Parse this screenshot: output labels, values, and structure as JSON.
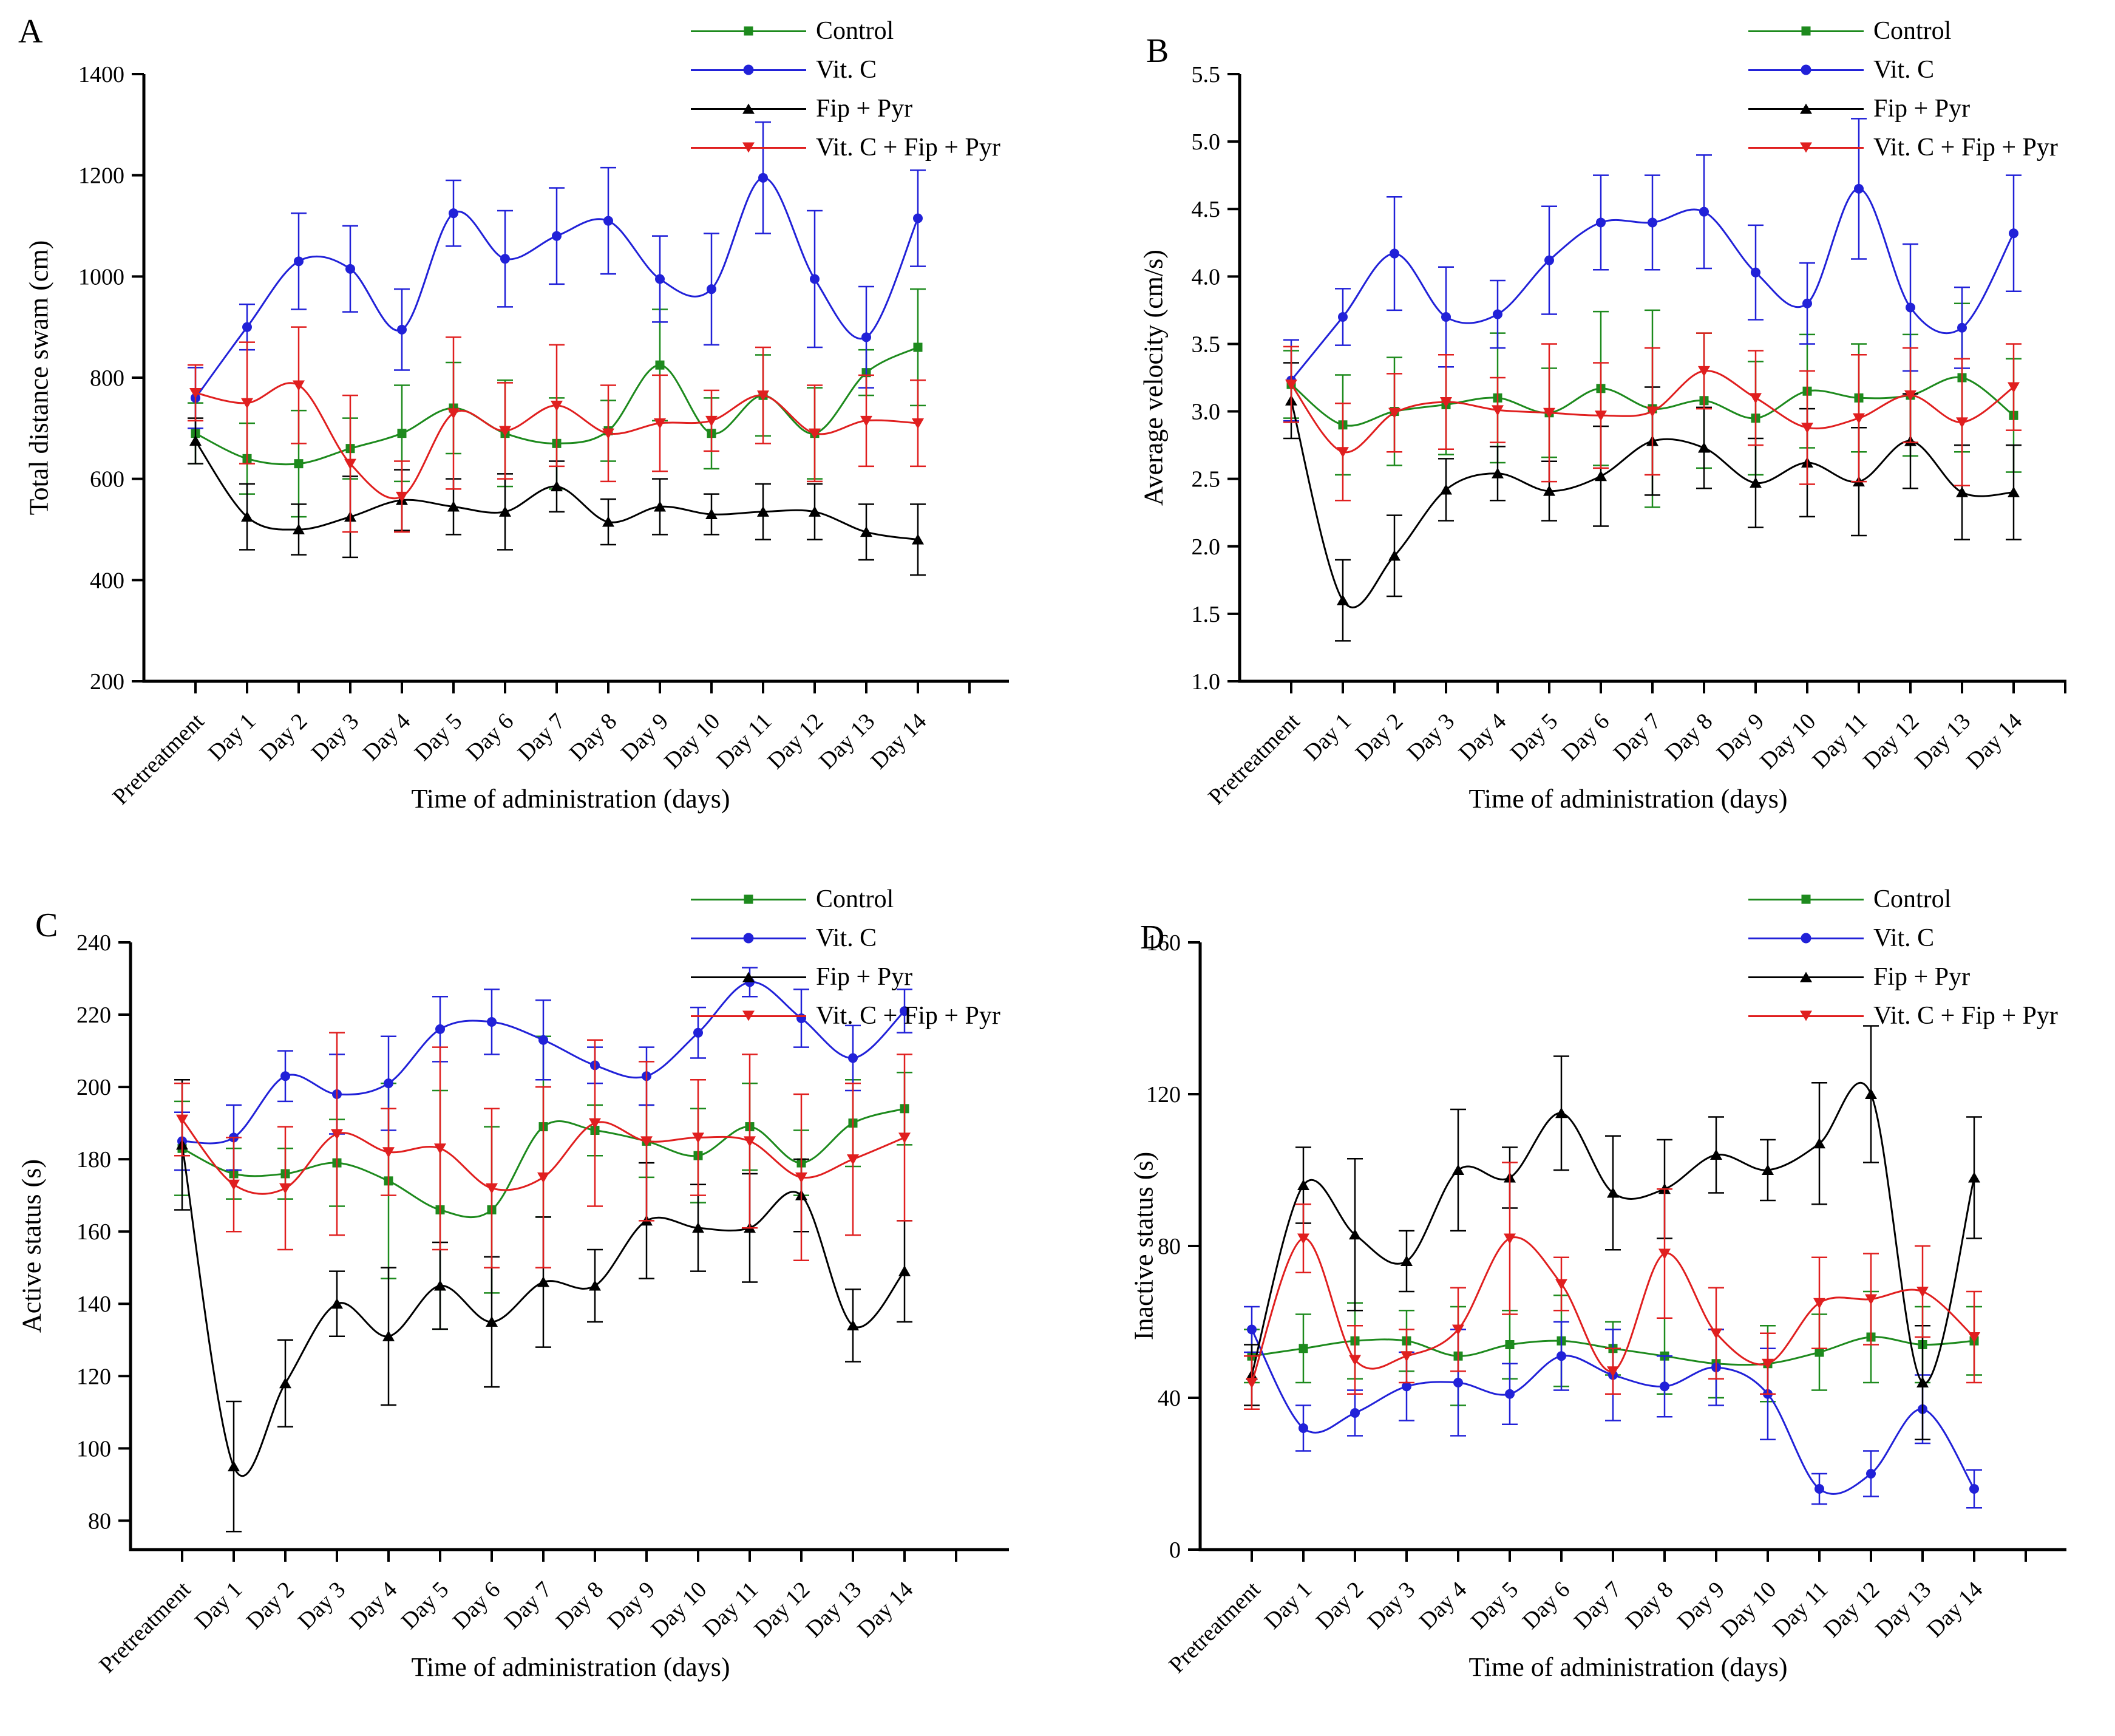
{
  "figure": {
    "xlabel": "Time of administration (days)",
    "background": "#ffffff",
    "categories": [
      "Pretreatment",
      "Day 1",
      "Day 2",
      "Day 3",
      "Day 4",
      "Day 5",
      "Day 6",
      "Day 7",
      "Day 8",
      "Day 9",
      "Day 10",
      "Day 11",
      "Day 12",
      "Day 13",
      "Day 14"
    ],
    "legend": [
      "Control",
      "Vit. C",
      "Fip + Pyr",
      "Vit. C + Fip + Pyr"
    ],
    "colors": [
      "#1d8a1d",
      "#2121d8",
      "#000000",
      "#e01f1f"
    ],
    "markers": [
      "square",
      "circle",
      "triangle-up",
      "triangle-down"
    ]
  },
  "chart_data": [
    {
      "type": "line",
      "panel_label": "A",
      "ylabel": "Total distance swam (cm)",
      "xlabel": "Time of administration (days)",
      "ylim": [
        200,
        1400
      ],
      "yticks": [
        [
          200,
          "200"
        ],
        [
          400,
          "400"
        ],
        [
          600,
          "600"
        ],
        [
          800,
          "800"
        ],
        [
          1000,
          "1000"
        ],
        [
          1200,
          "1200"
        ],
        [
          1400,
          "1400"
        ]
      ],
      "legend_position": "top-right",
      "grid": false,
      "series": [
        {
          "name": "Control",
          "color": "#1d8a1d",
          "marker": "square",
          "values": [
            690,
            640,
            630,
            660,
            690,
            740,
            690,
            670,
            695,
            825,
            690,
            765,
            690,
            810,
            860
          ],
          "errors": [
            60,
            70,
            105,
            60,
            95,
            90,
            105,
            90,
            60,
            110,
            70,
            80,
            90,
            45,
            115
          ]
        },
        {
          "name": "Vit. C",
          "color": "#2121d8",
          "marker": "circle",
          "values": [
            760,
            900,
            1030,
            1015,
            895,
            1125,
            1035,
            1080,
            1110,
            995,
            975,
            1195,
            995,
            880,
            1115
          ],
          "errors": [
            60,
            45,
            95,
            85,
            80,
            65,
            95,
            95,
            105,
            85,
            110,
            110,
            135,
            100,
            95
          ]
        },
        {
          "name": "Fip + Pyr",
          "color": "#000000",
          "marker": "triangle-up",
          "values": [
            675,
            525,
            500,
            525,
            558,
            545,
            535,
            585,
            515,
            545,
            530,
            535,
            535,
            495,
            480
          ],
          "errors": [
            45,
            65,
            50,
            80,
            60,
            55,
            75,
            50,
            45,
            55,
            40,
            55,
            55,
            55,
            70
          ]
        },
        {
          "name": "Vit. C + Fip + Pyr",
          "color": "#e01f1f",
          "marker": "triangle-down",
          "values": [
            770,
            750,
            785,
            630,
            565,
            730,
            695,
            745,
            690,
            710,
            715,
            765,
            690,
            715,
            710
          ],
          "errors": [
            55,
            120,
            115,
            135,
            70,
            150,
            95,
            120,
            95,
            95,
            60,
            95,
            95,
            90,
            85
          ]
        }
      ]
    },
    {
      "type": "line",
      "panel_label": "B",
      "ylabel": "Average velocity (cm/s)",
      "xlabel": "Time of administration (days)",
      "ylim": [
        1.0,
        5.5
      ],
      "yticks": [
        [
          1,
          "1.0"
        ],
        [
          1.5,
          "1.5"
        ],
        [
          2,
          "2.0"
        ],
        [
          2.5,
          "2.5"
        ],
        [
          3,
          "3.0"
        ],
        [
          3.5,
          "3.5"
        ],
        [
          4,
          "4.0"
        ],
        [
          4.5,
          "4.5"
        ],
        [
          5,
          "5.0"
        ],
        [
          5.5,
          "5.5"
        ]
      ],
      "legend_position": "top-right",
      "grid": false,
      "series": [
        {
          "name": "Control",
          "color": "#1d8a1d",
          "marker": "square",
          "values": [
            3.2,
            2.9,
            3.0,
            3.05,
            3.1,
            2.99,
            3.17,
            3.02,
            3.08,
            2.95,
            3.15,
            3.1,
            3.12,
            3.25,
            2.97
          ],
          "errors": [
            0.25,
            0.37,
            0.4,
            0.37,
            0.48,
            0.33,
            0.57,
            0.73,
            0.5,
            0.42,
            0.42,
            0.4,
            0.45,
            0.55,
            0.42
          ]
        },
        {
          "name": "Vit. C",
          "color": "#2121d8",
          "marker": "circle",
          "values": [
            3.23,
            3.7,
            4.17,
            3.7,
            3.72,
            4.12,
            4.4,
            4.4,
            4.48,
            4.03,
            3.8,
            4.65,
            3.77,
            3.62,
            4.32
          ],
          "errors": [
            0.3,
            0.21,
            0.42,
            0.37,
            0.25,
            0.4,
            0.35,
            0.35,
            0.42,
            0.35,
            0.3,
            0.52,
            0.47,
            0.3,
            0.43
          ]
        },
        {
          "name": "Fip + Pyr",
          "color": "#000000",
          "marker": "triangle-up",
          "values": [
            3.08,
            1.6,
            1.93,
            2.42,
            2.54,
            2.41,
            2.52,
            2.78,
            2.73,
            2.47,
            2.62,
            2.48,
            2.78,
            2.4,
            2.4
          ],
          "errors": [
            0.28,
            0.3,
            0.3,
            0.23,
            0.2,
            0.22,
            0.37,
            0.4,
            0.3,
            0.33,
            0.4,
            0.4,
            0.35,
            0.35,
            0.35
          ]
        },
        {
          "name": "Vit. C + Fip + Pyr",
          "color": "#e01f1f",
          "marker": "triangle-down",
          "values": [
            3.2,
            2.7,
            2.99,
            3.07,
            3.01,
            2.99,
            2.97,
            3.0,
            3.3,
            3.1,
            2.88,
            2.95,
            3.12,
            2.92,
            3.18
          ],
          "errors": [
            0.28,
            0.36,
            0.29,
            0.35,
            0.24,
            0.51,
            0.39,
            0.47,
            0.28,
            0.35,
            0.42,
            0.47,
            0.35,
            0.47,
            0.32
          ]
        }
      ]
    },
    {
      "type": "line",
      "panel_label": "C",
      "ylabel": "Active status (s)",
      "xlabel": "Time of administration (days)",
      "ylim": [
        72,
        240
      ],
      "yticks": [
        [
          80,
          "80"
        ],
        [
          100,
          "100"
        ],
        [
          120,
          "120"
        ],
        [
          140,
          "140"
        ],
        [
          160,
          "160"
        ],
        [
          180,
          "180"
        ],
        [
          200,
          "200"
        ],
        [
          220,
          "220"
        ],
        [
          240,
          "240"
        ]
      ],
      "legend_position": "top-right",
      "grid": false,
      "series": [
        {
          "name": "Control",
          "color": "#1d8a1d",
          "marker": "square",
          "values": [
            183,
            176,
            176,
            179,
            174,
            166,
            166,
            189,
            188,
            185,
            181,
            189,
            179,
            190,
            194
          ],
          "errors": [
            13,
            7,
            7,
            12,
            27,
            33,
            23,
            25,
            7,
            10,
            13,
            12,
            9,
            12,
            10
          ]
        },
        {
          "name": "Vit. C",
          "color": "#2121d8",
          "marker": "circle",
          "values": [
            185,
            186,
            203,
            198,
            201,
            216,
            218,
            213,
            206,
            203,
            215,
            229,
            219,
            208,
            221
          ],
          "errors": [
            8,
            9,
            7,
            11,
            13,
            9,
            9,
            11,
            5,
            8,
            7,
            4,
            8,
            9,
            6
          ]
        },
        {
          "name": "Fip + Pyr",
          "color": "#000000",
          "marker": "triangle-up",
          "values": [
            184,
            95,
            118,
            140,
            131,
            145,
            135,
            146,
            145,
            163,
            161,
            161,
            170,
            134,
            149
          ],
          "errors": [
            18,
            18,
            12,
            9,
            19,
            12,
            18,
            18,
            10,
            16,
            12,
            15,
            10,
            10,
            14
          ]
        },
        {
          "name": "Vit. C + Fip + Pyr",
          "color": "#e01f1f",
          "marker": "triangle-down",
          "values": [
            191,
            173,
            172,
            187,
            182,
            183,
            172,
            175,
            190,
            185,
            186,
            185,
            175,
            180,
            186
          ],
          "errors": [
            10,
            13,
            17,
            28,
            12,
            28,
            22,
            25,
            23,
            22,
            16,
            24,
            23,
            21,
            23
          ]
        }
      ]
    },
    {
      "type": "line",
      "panel_label": "D",
      "ylabel": "Inactive status (s)",
      "xlabel": "Time of administration (days)",
      "ylim": [
        0,
        160
      ],
      "yticks": [
        [
          0,
          "0"
        ],
        [
          40,
          "40"
        ],
        [
          80,
          "80"
        ],
        [
          120,
          "120"
        ],
        [
          160,
          "160"
        ]
      ],
      "legend_position": "top-right",
      "grid": false,
      "series": [
        {
          "name": "Control",
          "color": "#1d8a1d",
          "marker": "square",
          "values": [
            51,
            53,
            55,
            55,
            51,
            54,
            55,
            53,
            51,
            49,
            49,
            52,
            56,
            54,
            55
          ],
          "errors": [
            7,
            9,
            10,
            8,
            13,
            9,
            12,
            7,
            10,
            9,
            10,
            10,
            12,
            10,
            9
          ]
        },
        {
          "name": "Vit. C",
          "color": "#2121d8",
          "marker": "circle",
          "values": [
            58,
            32,
            36,
            43,
            44,
            41,
            51,
            46,
            43,
            48,
            41,
            16,
            20,
            37,
            16
          ],
          "errors": [
            6,
            6,
            6,
            9,
            14,
            8,
            9,
            12,
            8,
            10,
            12,
            4,
            6,
            9,
            5
          ]
        },
        {
          "name": "Fip + Pyr",
          "color": "#000000",
          "marker": "triangle-up",
          "values": [
            46,
            96,
            83,
            76,
            100,
            98,
            115,
            94,
            95,
            104,
            100,
            107,
            120,
            44,
            98
          ],
          "errors": [
            8,
            10,
            20,
            8,
            16,
            8,
            15,
            15,
            13,
            10,
            8,
            16,
            18,
            15,
            16
          ]
        },
        {
          "name": "Vit. C + Fip + Pyr",
          "color": "#e01f1f",
          "marker": "triangle-down",
          "values": [
            44,
            82,
            50,
            51,
            58,
            82,
            70,
            47,
            78,
            57,
            49,
            65,
            66,
            68,
            56
          ],
          "errors": [
            7,
            9,
            9,
            7,
            11,
            20,
            7,
            6,
            17,
            12,
            8,
            12,
            12,
            12,
            12
          ]
        }
      ]
    }
  ]
}
